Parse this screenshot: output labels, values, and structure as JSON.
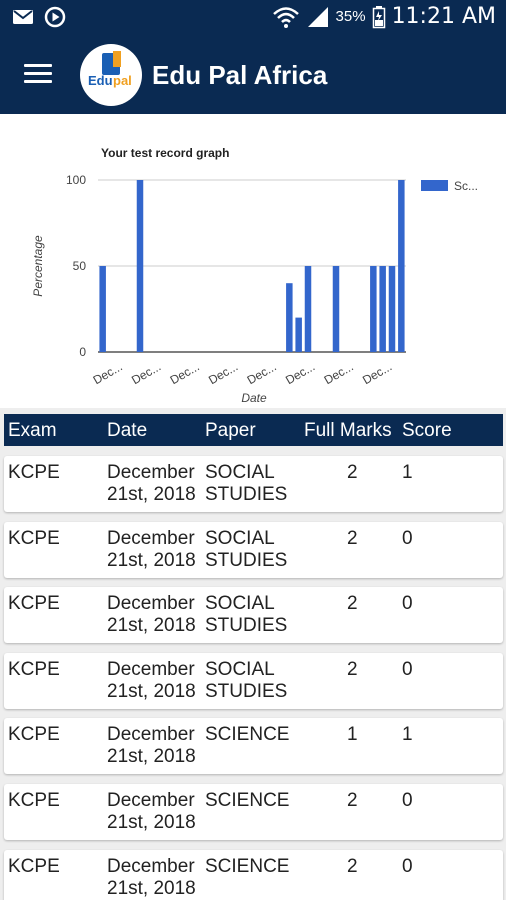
{
  "status_bar": {
    "battery_percent": "35%",
    "time": "11:21 AM",
    "icons": [
      "mail-icon",
      "play-icon",
      "wifi-icon",
      "signal-icon",
      "battery-icon"
    ]
  },
  "app_bar": {
    "title": "Edu Pal Africa",
    "logo_text": "Edu pal"
  },
  "colors": {
    "primary": "#0a2a52",
    "bar": "#3366cc"
  },
  "chart_data": {
    "type": "bar",
    "title": "Your test record graph",
    "xlabel": "Date",
    "ylabel": "Percentage",
    "ylim": [
      0,
      100
    ],
    "yticks": [
      0,
      50,
      100
    ],
    "xtick_labels": [
      "Dec...",
      "Dec...",
      "Dec...",
      "Dec...",
      "Dec...",
      "Dec...",
      "Dec...",
      "Dec..."
    ],
    "legend": [
      "Sc..."
    ],
    "legend_position": "right",
    "grid": true,
    "series": [
      {
        "name": "Sc...",
        "values": [
          50,
          0,
          0,
          0,
          100,
          0,
          0,
          0,
          0,
          0,
          0,
          0,
          0,
          0,
          0,
          0,
          0,
          0,
          0,
          0,
          40,
          20,
          50,
          0,
          0,
          50,
          0,
          0,
          0,
          50,
          50,
          50,
          100
        ]
      }
    ]
  },
  "table": {
    "headers": [
      "Exam",
      "Date",
      "Paper",
      "Full Marks",
      "Score"
    ],
    "rows": [
      {
        "exam": "KCPE",
        "date_line1": "December",
        "date_line2": "21st, 2018",
        "paper_line1": "SOCIAL",
        "paper_line2": "STUDIES",
        "full_marks": "2",
        "score": "1"
      },
      {
        "exam": "KCPE",
        "date_line1": "December",
        "date_line2": "21st, 2018",
        "paper_line1": "SOCIAL",
        "paper_line2": "STUDIES",
        "full_marks": "2",
        "score": "0"
      },
      {
        "exam": "KCPE",
        "date_line1": "December",
        "date_line2": "21st, 2018",
        "paper_line1": "SOCIAL",
        "paper_line2": "STUDIES",
        "full_marks": "2",
        "score": "0"
      },
      {
        "exam": "KCPE",
        "date_line1": "December",
        "date_line2": "21st, 2018",
        "paper_line1": "SOCIAL",
        "paper_line2": "STUDIES",
        "full_marks": "2",
        "score": "0"
      },
      {
        "exam": "KCPE",
        "date_line1": "December",
        "date_line2": "21st, 2018",
        "paper_line1": "SCIENCE",
        "paper_line2": "",
        "full_marks": "1",
        "score": "1"
      },
      {
        "exam": "KCPE",
        "date_line1": "December",
        "date_line2": "21st, 2018",
        "paper_line1": "SCIENCE",
        "paper_line2": "",
        "full_marks": "2",
        "score": "0"
      },
      {
        "exam": "KCPE",
        "date_line1": "December",
        "date_line2": "21st, 2018",
        "paper_line1": "SCIENCE",
        "paper_line2": "",
        "full_marks": "2",
        "score": "0"
      }
    ]
  }
}
